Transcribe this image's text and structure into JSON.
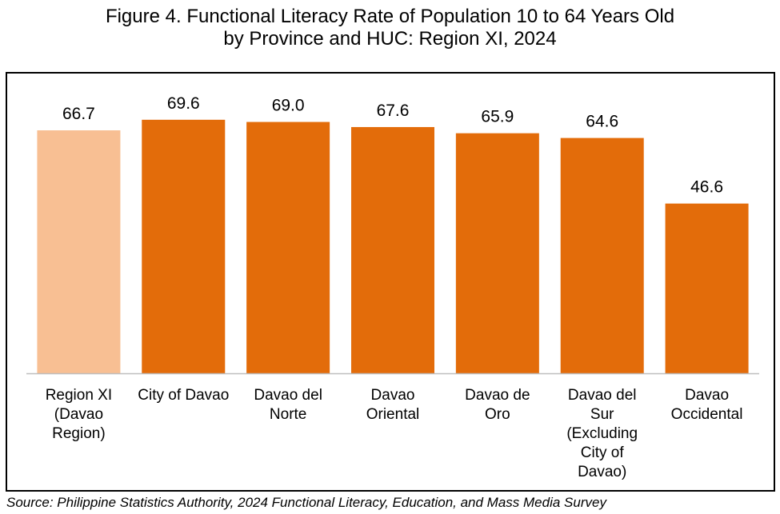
{
  "title": {
    "line1": "Figure 4. Functional Literacy Rate of Population 10 to 64 Years Old",
    "line2": "by Province and HUC: Region XI, 2024"
  },
  "source": "Source: Philippine Statistics Authority, 2024 Functional Literacy, Education, and Mass Media Survey",
  "colors": {
    "highlight": "#F8BF93",
    "bar": "#E36C0A",
    "axis": "#BFBFBF"
  },
  "chart_data": {
    "type": "bar",
    "title": "Figure 4. Functional Literacy Rate of Population 10 to 64 Years Old by Province and HUC: Region XI, 2024",
    "xlabel": "",
    "ylabel": "",
    "ylim": [
      0,
      70
    ],
    "grid": false,
    "legend": "none",
    "categories": [
      [
        "Region XI",
        "(Davao",
        "Region)"
      ],
      [
        "City of Davao"
      ],
      [
        "Davao del",
        "Norte"
      ],
      [
        "Davao",
        "Oriental"
      ],
      [
        "Davao de",
        "Oro"
      ],
      [
        "Davao del",
        "Sur",
        "(Excluding",
        "City of",
        "Davao)"
      ],
      [
        "Davao",
        "Occidental"
      ]
    ],
    "values": [
      66.7,
      69.6,
      69.0,
      67.6,
      65.9,
      64.6,
      46.6
    ],
    "value_labels": [
      "66.7",
      "69.6",
      "69.0",
      "67.6",
      "65.9",
      "64.6",
      "46.6"
    ],
    "highlight_index": 0
  }
}
